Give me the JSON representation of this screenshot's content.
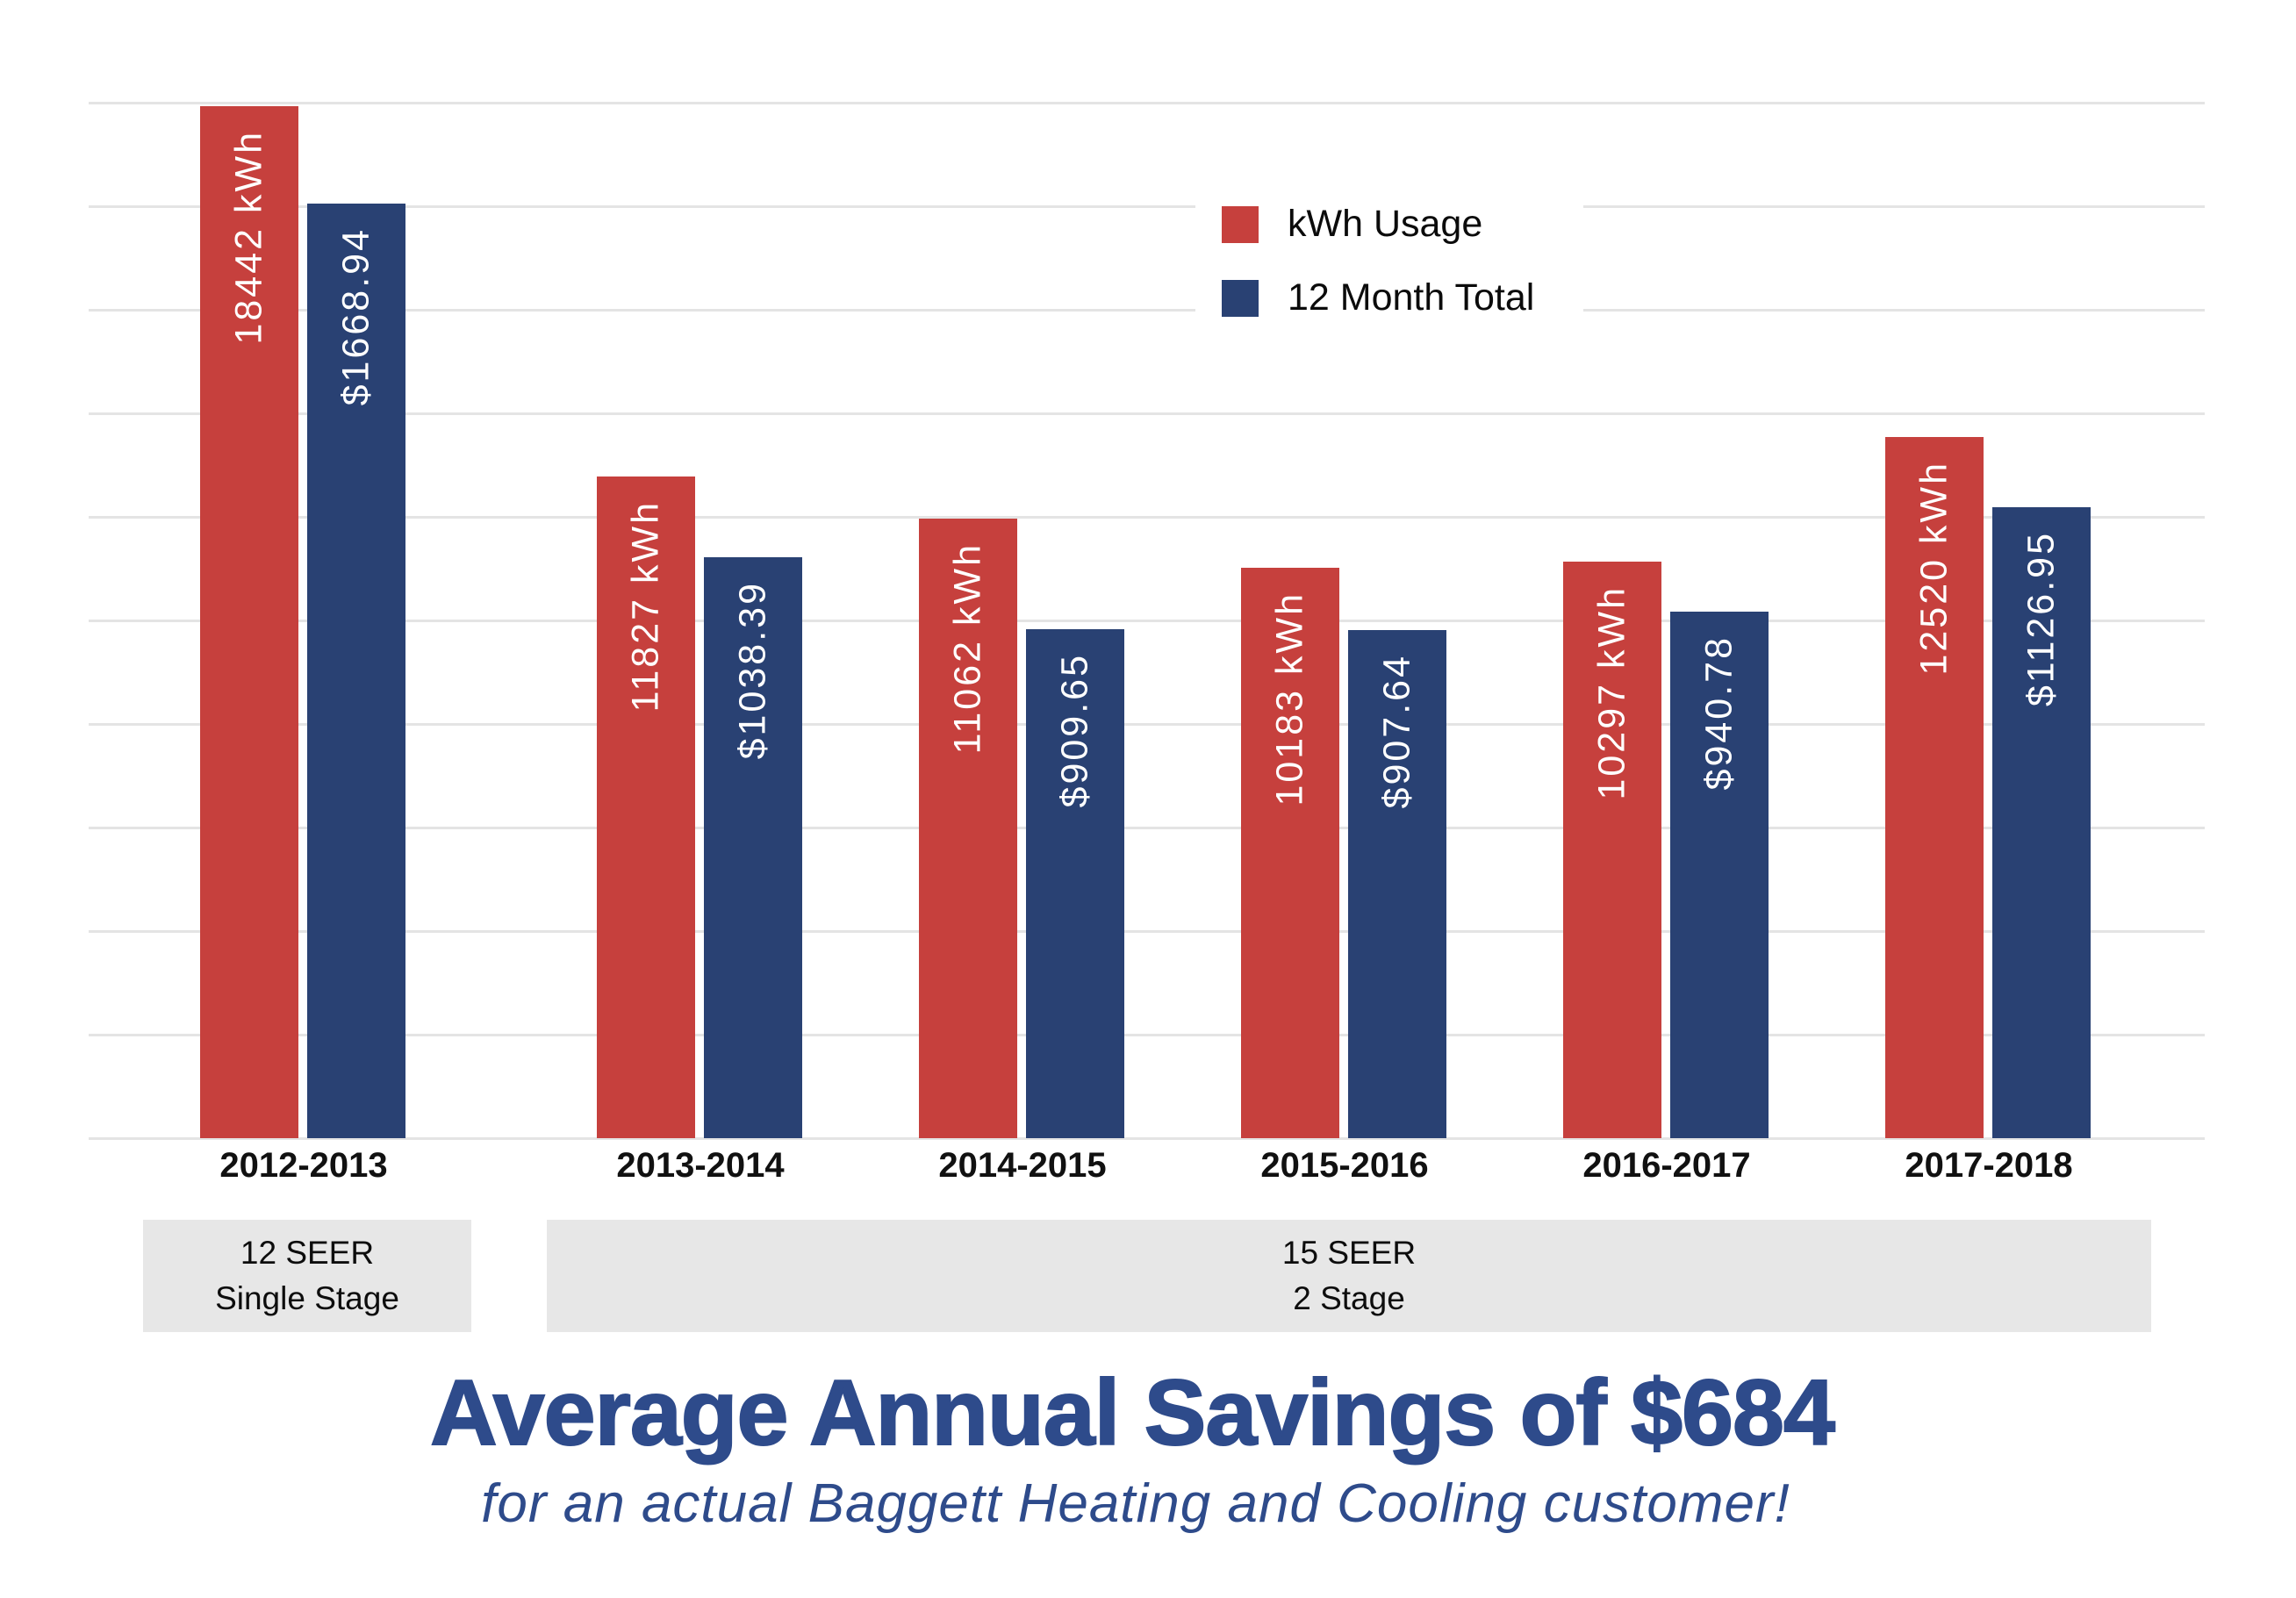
{
  "chart_data": {
    "type": "bar",
    "categories": [
      "2012-2013",
      "2013-2014",
      "2014-2015",
      "2015-2016",
      "2016-2017",
      "2017-2018"
    ],
    "series": [
      {
        "name": "kWh Usage",
        "color": "#c6403d",
        "values": [
          18442,
          11827,
          11062,
          10183,
          10297,
          12520
        ],
        "labels": [
          "18442 kWh",
          "11827 kWh",
          "11062 kWh",
          "10183 kWh",
          "10297 kWh",
          "12520 kWh"
        ],
        "axis_max": 18500
      },
      {
        "name": "12 Month Total",
        "color": "#294173",
        "values": [
          1668.94,
          1038.39,
          909.65,
          907.64,
          940.78,
          1126.95
        ],
        "labels": [
          "$1668.94",
          "$1038.39",
          "$909.65",
          "$907.64",
          "$940.78",
          "$1126.95"
        ],
        "axis_max": 1850
      }
    ],
    "title": "Average Annual Savings of $684",
    "xlabel": "",
    "ylabel": "",
    "grid": true,
    "gridline_count": 11,
    "legend_position": "top-right",
    "bar_label_color": "#ffffff",
    "gridline_color": "#e4e4e4"
  },
  "legend": {
    "items": [
      {
        "label": "kWh Usage",
        "color": "#c6403d"
      },
      {
        "label": "12 Month Total",
        "color": "#294173"
      }
    ]
  },
  "annotations": {
    "seer_blocks": [
      {
        "line1": "12 SEER",
        "line2": "Single Stage"
      },
      {
        "line1": "15 SEER",
        "line2": "2 Stage"
      }
    ],
    "block_bg": "#e7e7e7"
  },
  "footer": {
    "title": "Average Annual Savings of $684",
    "subtitle": "for an actual Baggett Heating and Cooling customer!"
  }
}
